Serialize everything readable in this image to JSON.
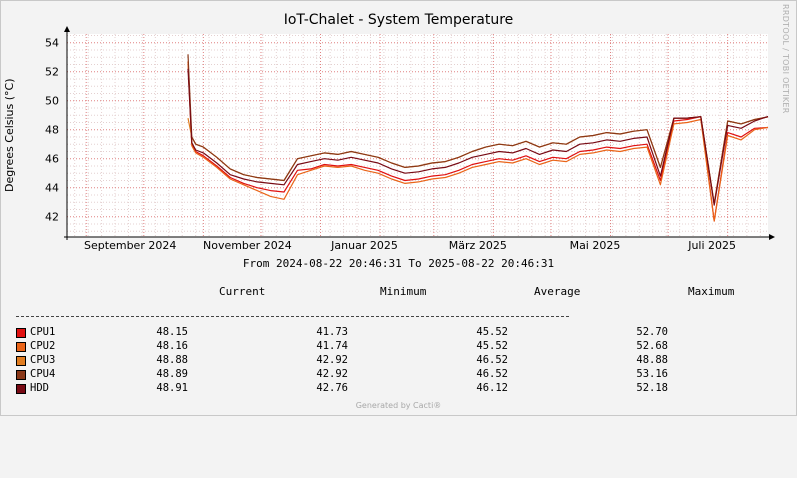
{
  "chart_data": {
    "type": "line",
    "title": "IoT-Chalet - System Temperature",
    "ylabel": "Degrees Celsius (°C)",
    "xlabel": "",
    "ylim": [
      40.6,
      54.6
    ],
    "y_ticks": [
      42,
      44,
      46,
      48,
      50,
      52,
      54
    ],
    "x_ticks": [
      "September 2024",
      "November 2024",
      "Januar 2025",
      "März 2025",
      "Mai 2025",
      "Juli 2025"
    ],
    "x_tick_dates": [
      "2024-09-01",
      "2024-11-01",
      "2025-01-01",
      "2025-03-01",
      "2025-05-01",
      "2025-07-01"
    ],
    "x_range": [
      "2024-08-22",
      "2025-08-22"
    ],
    "grid": true,
    "range_text": "From 2024-08-22 20:46:31 To 2025-08-22 20:46:31",
    "watermark": "RRDTOOL / TOBI OETIKER",
    "x": [
      "2024-10-24",
      "2024-10-26",
      "2024-10-28",
      "2024-11-01",
      "2024-11-08",
      "2024-11-15",
      "2024-11-22",
      "2024-11-29",
      "2024-12-06",
      "2024-12-13",
      "2024-12-20",
      "2024-12-27",
      "2025-01-03",
      "2025-01-10",
      "2025-01-17",
      "2025-01-24",
      "2025-01-31",
      "2025-02-07",
      "2025-02-14",
      "2025-02-21",
      "2025-02-28",
      "2025-03-07",
      "2025-03-14",
      "2025-03-21",
      "2025-03-28",
      "2025-04-04",
      "2025-04-11",
      "2025-04-18",
      "2025-04-25",
      "2025-05-02",
      "2025-05-09",
      "2025-05-16",
      "2025-05-23",
      "2025-05-30",
      "2025-06-06",
      "2025-06-13",
      "2025-06-20",
      "2025-06-27",
      "2025-07-04",
      "2025-07-11",
      "2025-07-18",
      "2025-07-25",
      "2025-08-01",
      "2025-08-08",
      "2025-08-15",
      "2025-08-22"
    ],
    "series": [
      {
        "name": "CPU1",
        "color": "#e01010",
        "values": [
          52.7,
          47.0,
          46.5,
          46.2,
          45.5,
          44.7,
          44.3,
          44.0,
          43.8,
          43.7,
          45.2,
          45.3,
          45.6,
          45.5,
          45.6,
          45.4,
          45.2,
          44.8,
          44.5,
          44.6,
          44.8,
          44.9,
          45.2,
          45.6,
          45.8,
          46.0,
          45.9,
          46.2,
          45.8,
          46.1,
          46.0,
          46.5,
          46.6,
          46.8,
          46.7,
          46.9,
          47.0,
          44.5,
          48.6,
          48.7,
          48.9,
          41.7,
          47.8,
          47.5,
          48.1,
          48.15
        ]
      },
      {
        "name": "CPU2",
        "color": "#ea6418",
        "values": [
          52.7,
          46.9,
          46.4,
          46.1,
          45.4,
          44.6,
          44.2,
          43.8,
          43.4,
          43.2,
          44.9,
          45.2,
          45.5,
          45.4,
          45.5,
          45.2,
          45.0,
          44.6,
          44.3,
          44.4,
          44.6,
          44.7,
          45.0,
          45.4,
          45.6,
          45.8,
          45.7,
          46.0,
          45.6,
          45.9,
          45.8,
          46.3,
          46.4,
          46.6,
          46.5,
          46.7,
          46.8,
          44.2,
          48.4,
          48.5,
          48.7,
          41.7,
          47.6,
          47.3,
          48.0,
          48.16
        ]
      },
      {
        "name": "CPU3",
        "color": "#e07c20",
        "values": [
          48.8,
          47.5,
          47.0,
          46.8,
          46.1,
          45.3,
          44.9,
          44.7,
          44.6,
          44.5,
          46.0,
          46.2,
          46.4,
          46.3,
          46.5,
          46.3,
          46.1,
          45.7,
          45.4,
          45.5,
          45.7,
          45.8,
          46.1,
          46.5,
          46.8,
          47.0,
          46.9,
          47.2,
          46.8,
          47.1,
          47.0,
          47.5,
          47.6,
          47.8,
          47.7,
          47.9,
          48.0,
          45.4,
          48.8,
          48.8,
          48.9,
          42.9,
          48.6,
          48.4,
          48.7,
          48.88
        ]
      },
      {
        "name": "CPU4",
        "color": "#8a3818",
        "values": [
          53.2,
          47.5,
          47.0,
          46.8,
          46.1,
          45.3,
          44.9,
          44.7,
          44.6,
          44.5,
          46.0,
          46.2,
          46.4,
          46.3,
          46.5,
          46.3,
          46.1,
          45.7,
          45.4,
          45.5,
          45.7,
          45.8,
          46.1,
          46.5,
          46.8,
          47.0,
          46.9,
          47.2,
          46.8,
          47.1,
          47.0,
          47.5,
          47.6,
          47.8,
          47.7,
          47.9,
          48.0,
          45.4,
          48.8,
          48.8,
          48.9,
          42.9,
          48.6,
          48.4,
          48.7,
          48.89
        ]
      },
      {
        "name": "HDD",
        "color": "#780a14",
        "values": [
          52.2,
          47.1,
          46.6,
          46.4,
          45.7,
          44.9,
          44.6,
          44.4,
          44.3,
          44.2,
          45.6,
          45.8,
          46.0,
          45.9,
          46.1,
          45.9,
          45.7,
          45.3,
          45.0,
          45.1,
          45.3,
          45.4,
          45.7,
          46.1,
          46.3,
          46.5,
          46.4,
          46.7,
          46.3,
          46.6,
          46.5,
          47.0,
          47.1,
          47.3,
          47.2,
          47.4,
          47.5,
          44.8,
          48.8,
          48.8,
          48.9,
          42.8,
          48.3,
          48.1,
          48.6,
          48.91
        ]
      }
    ]
  },
  "legend": {
    "headers": {
      "current": "Current",
      "minimum": "Minimum",
      "average": "Average",
      "maximum": "Maximum"
    },
    "rows": [
      {
        "name": "CPU1",
        "color": "#e01010",
        "current": "48.15",
        "minimum": "41.73",
        "average": "45.52",
        "maximum": "52.70"
      },
      {
        "name": "CPU2",
        "color": "#ea6418",
        "current": "48.16",
        "minimum": "41.74",
        "average": "45.52",
        "maximum": "52.68"
      },
      {
        "name": "CPU3",
        "color": "#e07c20",
        "current": "48.88",
        "minimum": "42.92",
        "average": "46.52",
        "maximum": "48.88"
      },
      {
        "name": "CPU4",
        "color": "#8a3818",
        "current": "48.89",
        "minimum": "42.92",
        "average": "46.52",
        "maximum": "53.16"
      },
      {
        "name": "HDD",
        "color": "#780a14",
        "current": "48.91",
        "minimum": "42.76",
        "average": "46.12",
        "maximum": "52.18"
      }
    ]
  },
  "footer": "Generated by Cacti®"
}
